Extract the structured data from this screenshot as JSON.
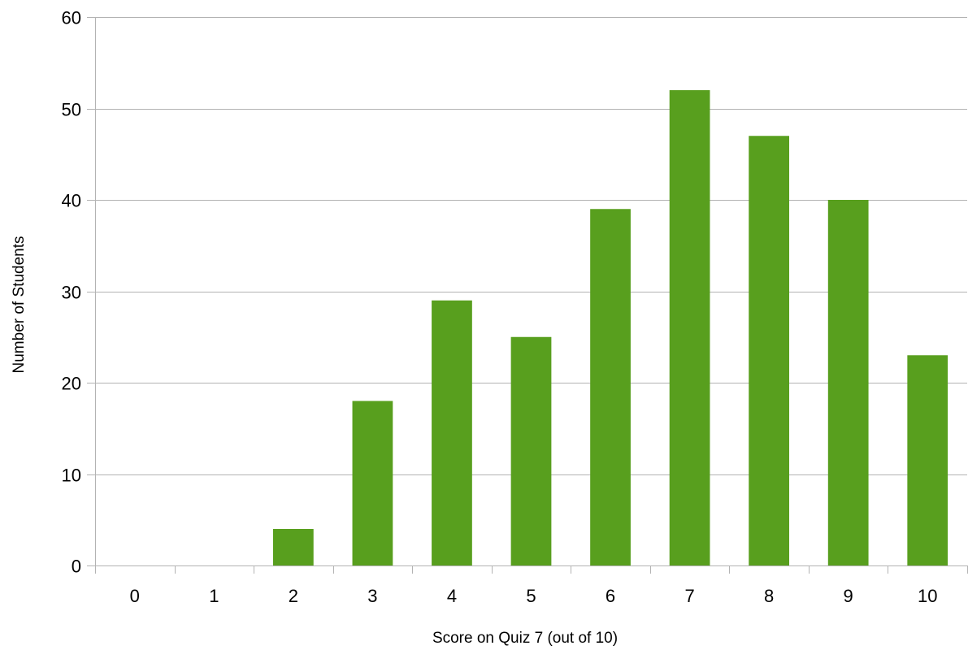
{
  "chart_data": {
    "type": "bar",
    "title": "",
    "xlabel": "Score on Quiz 7 (out of 10)",
    "ylabel": "Number of Students",
    "categories": [
      "0",
      "1",
      "2",
      "3",
      "4",
      "5",
      "6",
      "7",
      "8",
      "9",
      "10"
    ],
    "values": [
      0,
      0,
      4,
      18,
      29,
      25,
      39,
      52,
      47,
      40,
      23
    ],
    "ylim": [
      0,
      60
    ],
    "yticks": [
      0,
      10,
      20,
      30,
      40,
      50,
      60
    ],
    "grid": true,
    "legend": "none",
    "bar_color": "#589f1e",
    "grid_color": "#b3b3b3"
  }
}
